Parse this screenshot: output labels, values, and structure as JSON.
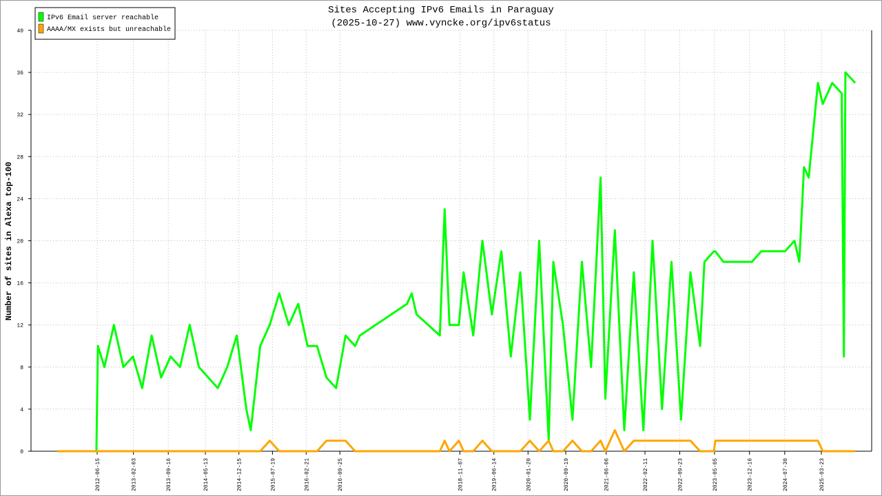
{
  "chart_data": {
    "type": "line",
    "title": "Sites Accepting IPv6 Emails in Paraguay",
    "subtitle": "(2025-10-27) www.vyncke.org/ipv6status",
    "y_label": "Number of sites in Alexa top-100",
    "legend": "top-left",
    "grid": true,
    "xlim": [
      "2011-04-16",
      "2026-02-10"
    ],
    "xticks": [
      "2012-06-15",
      "2013-02-03",
      "2013-09-16",
      "2014-05-13",
      "2014-12-15",
      "2015-07-19",
      "2016-02-21",
      "2016-09-25",
      "2018-11-07",
      "2019-06-14",
      "2020-01-20",
      "2020-09-19",
      "2021-06-06",
      "2022-02-11",
      "2022-09-23",
      "2023-05-05",
      "2023-12-16",
      "2024-07-30",
      "2025-03-23"
    ],
    "ylim": [
      0,
      40
    ],
    "yticks": [
      0,
      4,
      8,
      12,
      16,
      20,
      24,
      28,
      32,
      36,
      40
    ],
    "x": [
      "2011-10-01",
      "2012-06-10",
      "2012-06-20",
      "2012-08-01",
      "2012-10-01",
      "2012-12-01",
      "2013-02-01",
      "2013-04-01",
      "2013-06-01",
      "2013-08-01",
      "2013-10-01",
      "2013-12-01",
      "2014-02-01",
      "2014-04-01",
      "2014-06-01",
      "2014-08-01",
      "2014-10-01",
      "2014-12-01",
      "2015-02-01",
      "2015-03-01",
      "2015-05-01",
      "2015-07-01",
      "2015-09-01",
      "2015-11-01",
      "2016-01-01",
      "2016-03-01",
      "2016-05-01",
      "2016-07-01",
      "2016-09-01",
      "2016-11-01",
      "2017-01-01",
      "2017-02-01",
      "2017-12-01",
      "2018-01-01",
      "2018-02-01",
      "2018-07-01",
      "2018-08-01",
      "2018-09-01",
      "2018-11-01",
      "2018-12-01",
      "2019-02-01",
      "2019-04-01",
      "2019-06-01",
      "2019-08-01",
      "2019-10-01",
      "2019-12-01",
      "2020-02-01",
      "2020-04-01",
      "2020-06-01",
      "2020-07-01",
      "2020-09-01",
      "2020-11-01",
      "2021-01-01",
      "2021-03-01",
      "2021-05-01",
      "2021-06-01",
      "2021-08-01",
      "2021-10-01",
      "2021-12-01",
      "2022-02-01",
      "2022-04-01",
      "2022-06-01",
      "2022-08-01",
      "2022-10-01",
      "2022-12-01",
      "2023-02-01",
      "2023-03-01",
      "2023-05-01",
      "2023-05-10",
      "2023-07-01",
      "2024-01-01",
      "2024-03-01",
      "2024-08-01",
      "2024-10-01",
      "2024-11-01",
      "2024-12-01",
      "2025-01-01",
      "2025-03-01",
      "2025-04-01",
      "2025-06-01",
      "2025-08-01",
      "2025-08-15",
      "2025-08-25",
      "2025-10-27"
    ],
    "series": [
      {
        "name": "IPv6 Email server reachable",
        "color": "#00ff00",
        "values": [
          0,
          0,
          10,
          8,
          12,
          8,
          9,
          6,
          11,
          7,
          9,
          8,
          12,
          8,
          7,
          6,
          8,
          11,
          4,
          2,
          10,
          12,
          15,
          12,
          14,
          10,
          10,
          7,
          6,
          11,
          10,
          11,
          14,
          15,
          13,
          11,
          23,
          12,
          12,
          17,
          11,
          20,
          13,
          19,
          9,
          17,
          3,
          20,
          1,
          18,
          12,
          3,
          18,
          8,
          26,
          5,
          21,
          2,
          17,
          2,
          20,
          4,
          18,
          3,
          17,
          10,
          18,
          19,
          19,
          18,
          18,
          19,
          19,
          20,
          18,
          27,
          26,
          35,
          33,
          35,
          34,
          9,
          36,
          35
        ]
      },
      {
        "name": "AAAA/MX exists but unreachable",
        "color": "#ffa500",
        "values": [
          0,
          0,
          0,
          0,
          0,
          0,
          0,
          0,
          0,
          0,
          0,
          0,
          0,
          0,
          0,
          0,
          0,
          0,
          0,
          0,
          0,
          1,
          0,
          0,
          0,
          0,
          0,
          1,
          1,
          1,
          0,
          0,
          0,
          0,
          0,
          0,
          1,
          0,
          1,
          0,
          0,
          1,
          0,
          0,
          0,
          0,
          1,
          0,
          1,
          0,
          0,
          1,
          0,
          0,
          1,
          0,
          2,
          0,
          1,
          1,
          1,
          1,
          1,
          1,
          1,
          0,
          0,
          0,
          1,
          1,
          1,
          1,
          1,
          1,
          1,
          1,
          1,
          1,
          0,
          0,
          0,
          0,
          0,
          0
        ]
      }
    ]
  }
}
